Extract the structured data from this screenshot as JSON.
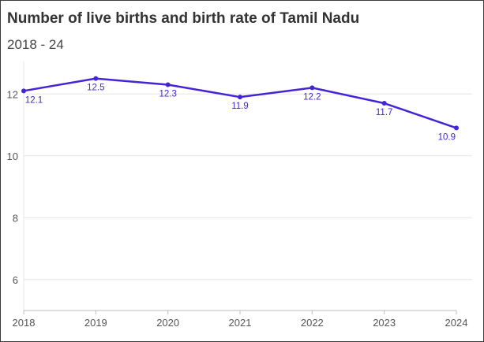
{
  "chart_data": {
    "type": "line",
    "title": "Number of live births and birth rate of Tamil Nadu",
    "subtitle": "2018 - 24",
    "categories": [
      "2018",
      "2019",
      "2020",
      "2021",
      "2022",
      "2023",
      "2024"
    ],
    "series": [
      {
        "values": [
          12.1,
          12.5,
          12.3,
          11.9,
          12.2,
          11.7,
          10.9
        ],
        "labels": [
          "12.1",
          "12.5",
          "12.3",
          "11.9",
          "12.2",
          "11.7",
          "10.9"
        ]
      }
    ],
    "yticks": [
      6,
      8,
      10,
      12
    ],
    "ylim": [
      5,
      13
    ],
    "grid": true,
    "colors": {
      "line": "#4424d6",
      "grid": "#e6e6e6",
      "axis": "#bdbdbd"
    }
  }
}
